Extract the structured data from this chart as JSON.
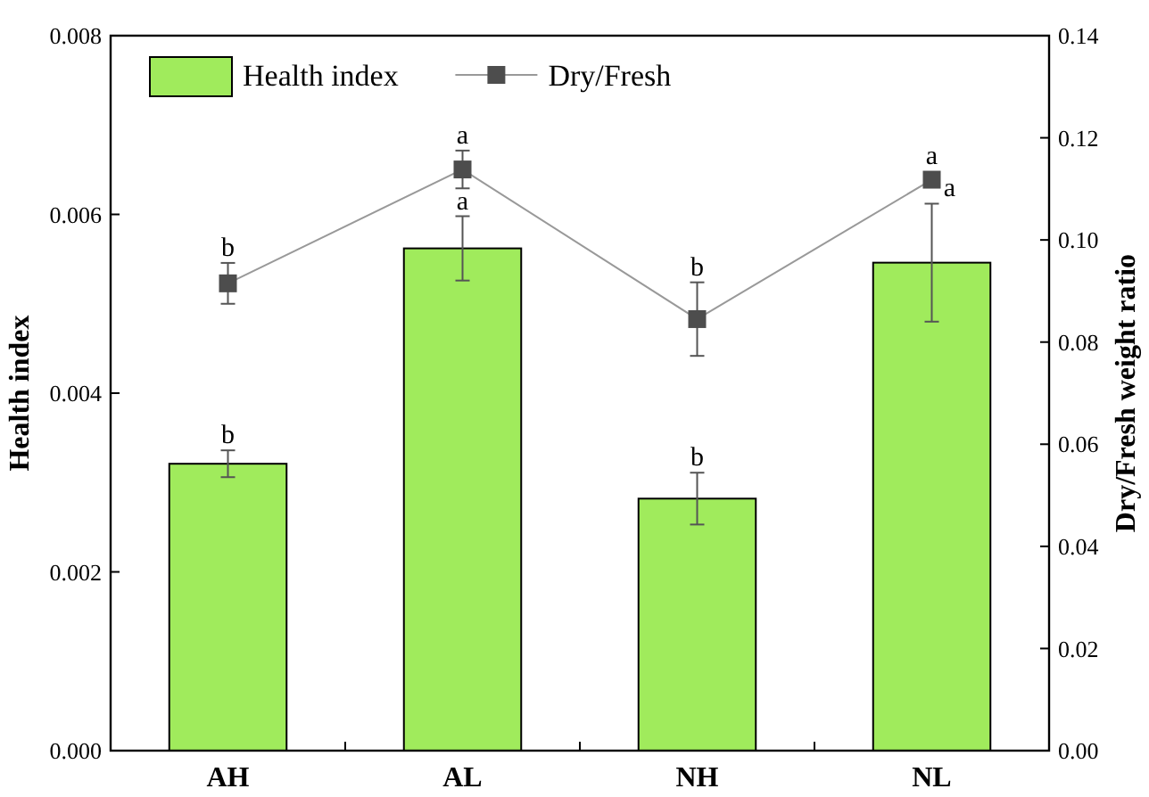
{
  "chart_data": {
    "type": "bar",
    "ylabel": "Health index",
    "y2label": "Dry/Fresh weight ratio",
    "categories": [
      "AH",
      "AL",
      "NH",
      "NL"
    ],
    "series": [
      {
        "name": "Health index",
        "color": "#a0eb5c",
        "values": [
          0.00321,
          0.00562,
          0.00282,
          0.00546
        ],
        "errors": [
          0.00015,
          0.00036,
          0.00029,
          0.00066
        ],
        "value_labels": [
          "b",
          "a",
          "b",
          "a"
        ]
      },
      {
        "name": "Dry/Fresh",
        "type": "line",
        "axis": "y2",
        "color": "#4d4d4d",
        "marker": "square",
        "values": [
          0.0915,
          0.1138,
          0.0845,
          0.1118
        ],
        "errors": [
          0.004,
          0.0037,
          0.0072,
          null
        ],
        "value_labels": [
          "b",
          "a",
          "b",
          "a"
        ]
      }
    ],
    "ylim": [
      0,
      0.008
    ],
    "yticks": [
      {
        "value": 0,
        "label": "0.000"
      },
      {
        "value": 0.002,
        "label": "0.002"
      },
      {
        "value": 0.004,
        "label": "0.004"
      },
      {
        "value": 0.006,
        "label": "0.006"
      },
      {
        "value": 0.008,
        "label": "0.008"
      }
    ],
    "y2lim": [
      0,
      0.14
    ],
    "y2ticks": [
      {
        "value": 0,
        "label": "0.00"
      },
      {
        "value": 0.02,
        "label": "0.02"
      },
      {
        "value": 0.04,
        "label": "0.04"
      },
      {
        "value": 0.06,
        "label": "0.06"
      },
      {
        "value": 0.08,
        "label": "0.08"
      },
      {
        "value": 0.1,
        "label": "0.10"
      },
      {
        "value": 0.12,
        "label": "0.12"
      },
      {
        "value": 0.14,
        "label": "0.14"
      }
    ],
    "legend": "top left",
    "grid": false
  }
}
